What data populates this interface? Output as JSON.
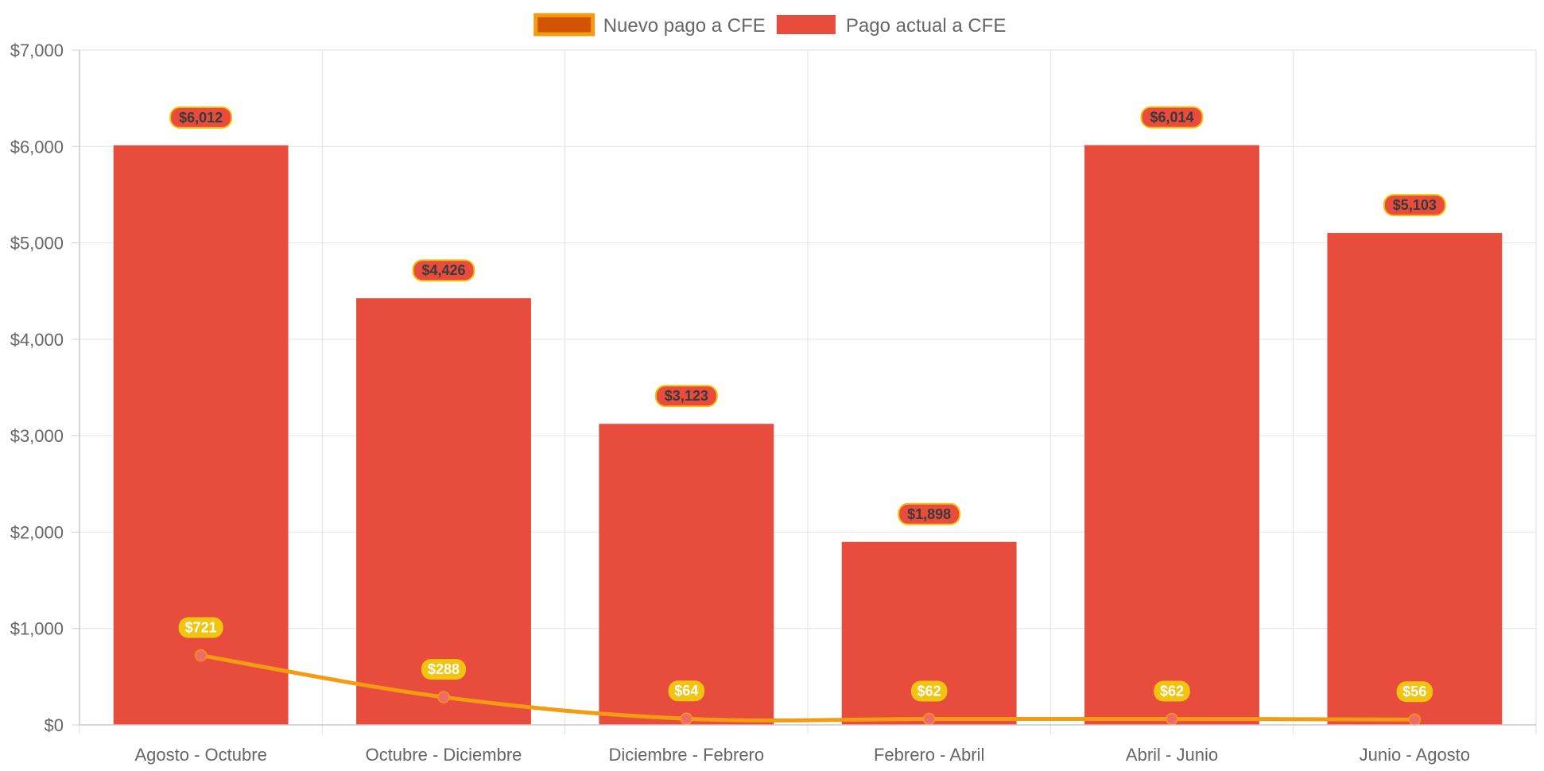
{
  "chart_data": {
    "type": "bar",
    "categories": [
      "Agosto - Octubre",
      "Octubre - Diciembre",
      "Diciembre - Febrero",
      "Febrero - Abril",
      "Abril - Junio",
      "Junio - Agosto"
    ],
    "series": [
      {
        "name": "Nuevo pago a CFE",
        "type": "line",
        "values": [
          721,
          288,
          64,
          62,
          62,
          56
        ],
        "labels": [
          "$721",
          "$288",
          "$64",
          "$62",
          "$62",
          "$56"
        ],
        "color": "#f39c12",
        "legend_fill": "#d35400",
        "point_color": "#f06a6a",
        "label_bg": "#f1c40f",
        "label_text_color": "#ffffff"
      },
      {
        "name": "Pago actual a CFE",
        "type": "bar",
        "values": [
          6012,
          4426,
          3123,
          1898,
          6014,
          5103
        ],
        "labels": [
          "$6,012",
          "$4,426",
          "$3,123",
          "$1,898",
          "$6,014",
          "$5,103"
        ],
        "color": "#e74c3c",
        "label_bg": "#e74c3c",
        "label_border": "#f1c40f",
        "label_text_color": "#3a3a3a"
      }
    ],
    "ylim": [
      0,
      7000
    ],
    "ytick_labels": [
      "$0",
      "$1,000",
      "$2,000",
      "$3,000",
      "$4,000",
      "$5,000",
      "$6,000",
      "$7,000"
    ],
    "ytick_values": [
      0,
      1000,
      2000,
      3000,
      4000,
      5000,
      6000,
      7000
    ],
    "grid": true,
    "legend_position": "top-center",
    "title": "",
    "xlabel": "",
    "ylabel": ""
  }
}
